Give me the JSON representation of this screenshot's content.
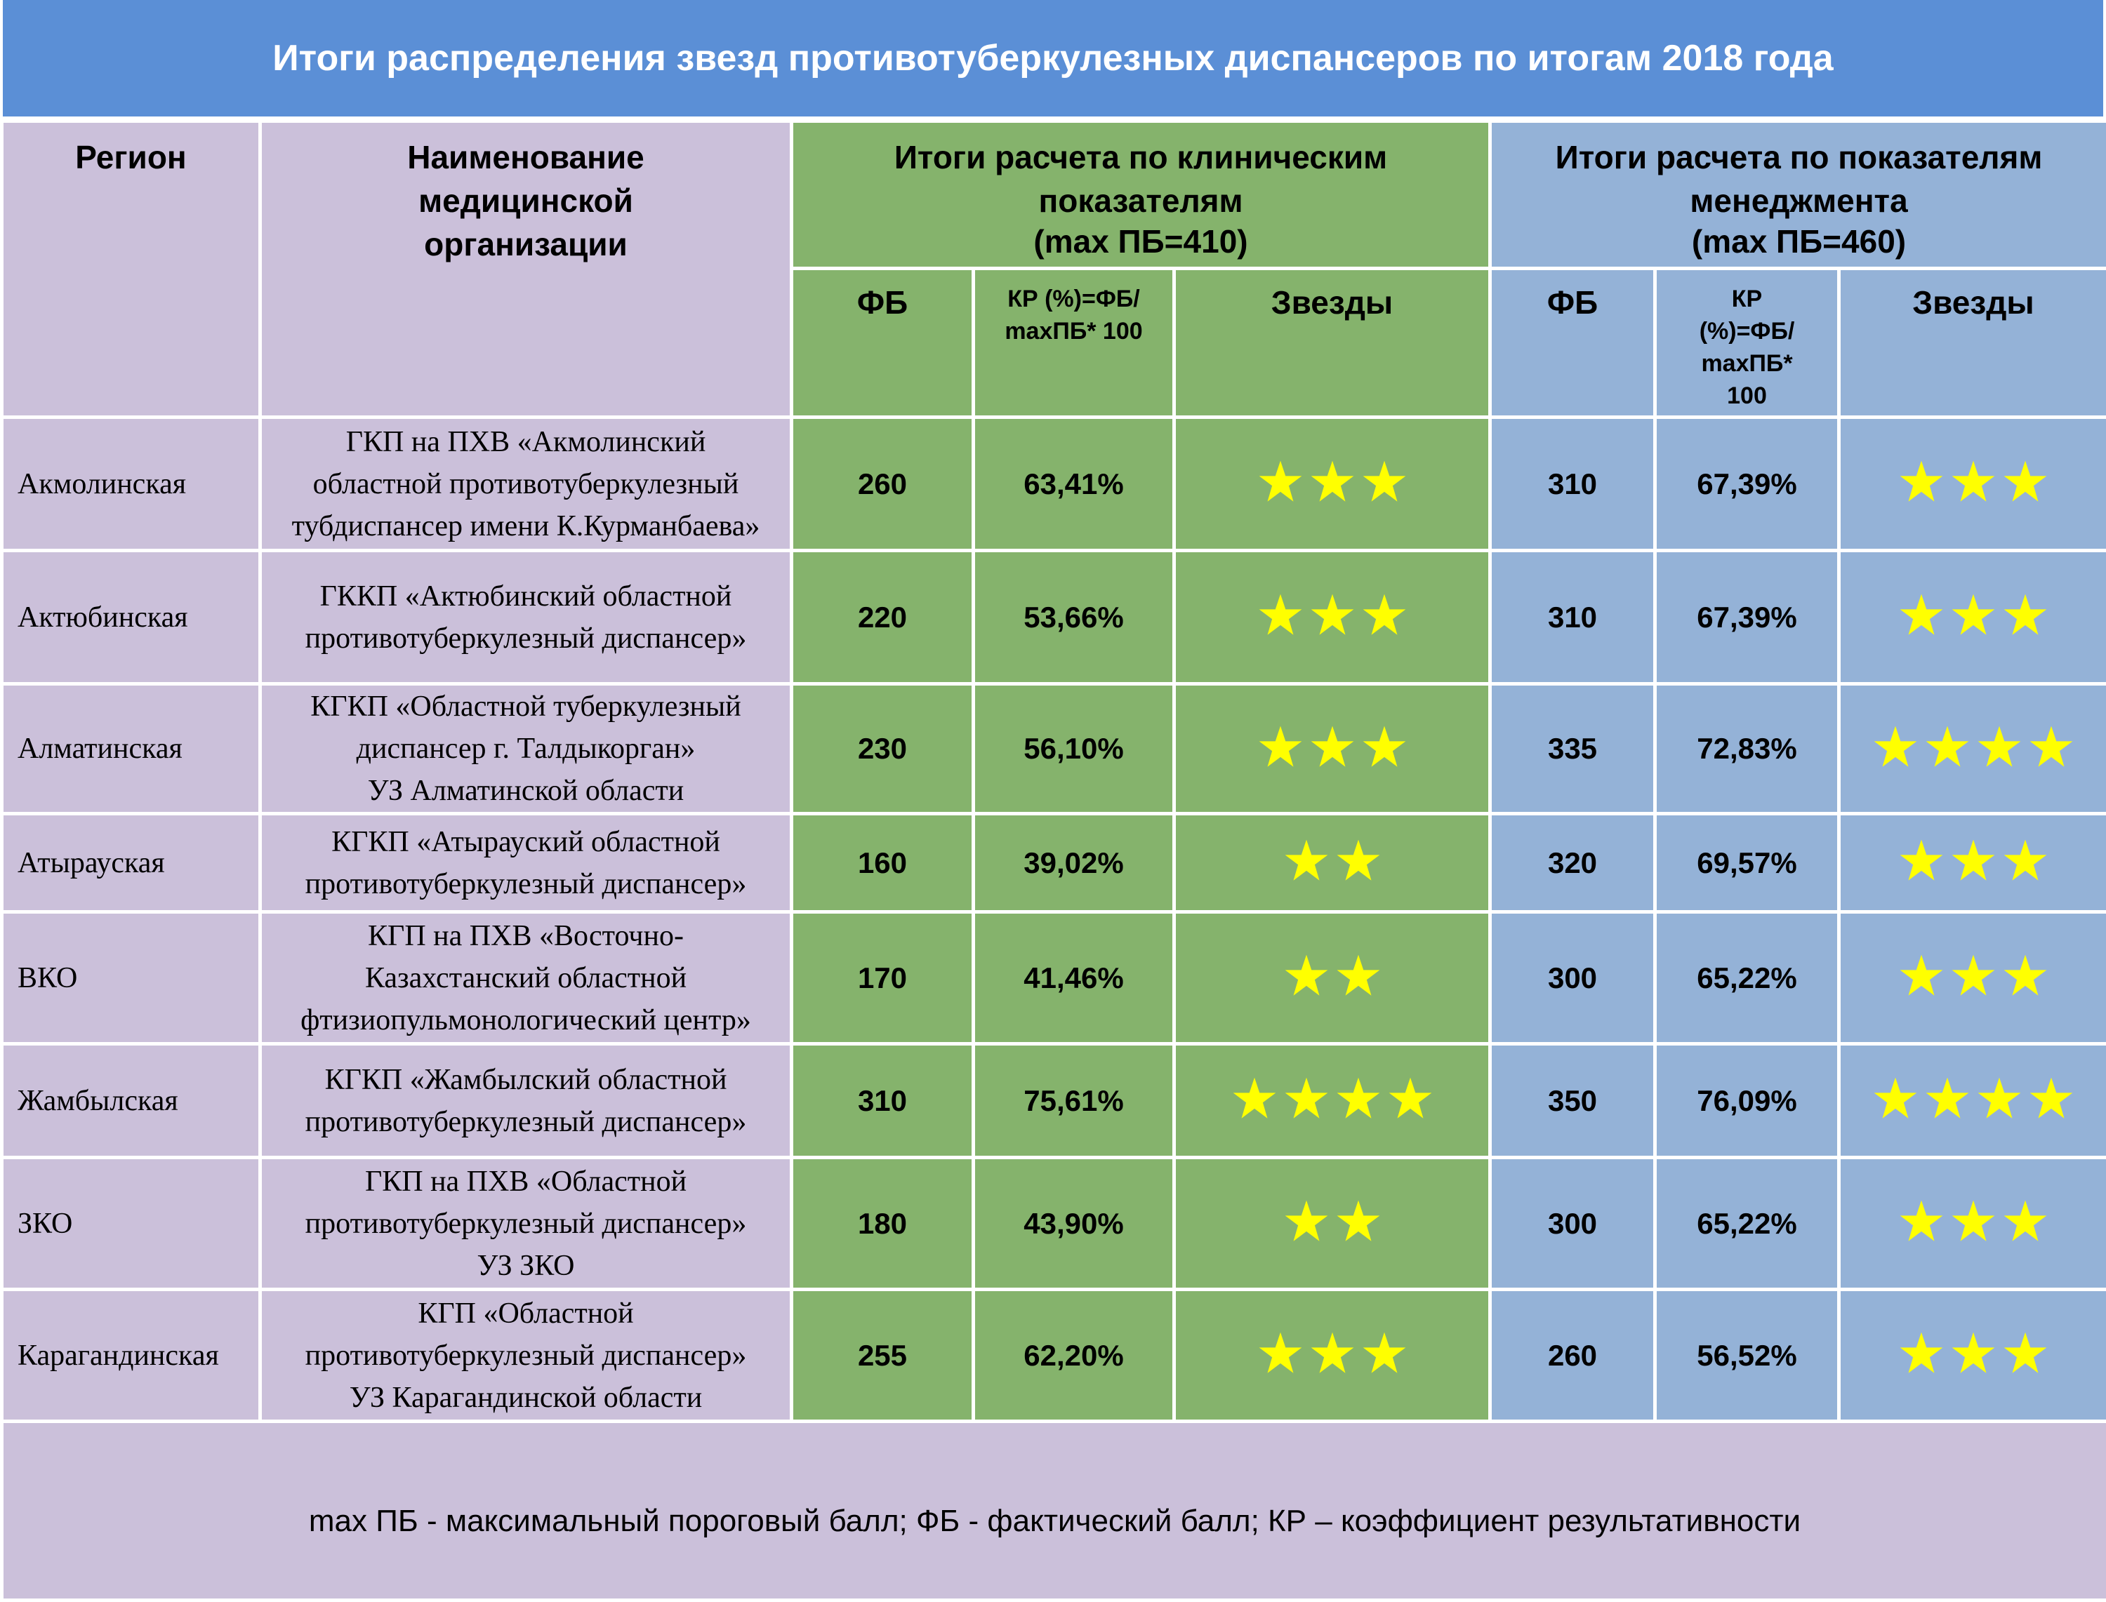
{
  "title": "Итоги распределения звезд противотуберкулезных диспансеров по итогам 2018 года",
  "header": {
    "region": "Регион",
    "org": "Наименование медицинской организации",
    "clinical": {
      "line1": "Итоги расчета по клиническим",
      "line2": "показателям",
      "line3": "(max ПБ=410)"
    },
    "management": {
      "line1": "Итоги расчета по показателям",
      "line2": "менеджмента",
      "line3": "(max ПБ=460)"
    },
    "fb": "ФБ",
    "kr_clin_1": "КР (%)=ФБ/",
    "kr_clin_2": "maxПБ* 100",
    "kr_mgmt_1": "КР",
    "kr_mgmt_2": "(%)=ФБ/",
    "kr_mgmt_3": "maxПБ*",
    "kr_mgmt_4": "100",
    "stars": "Звезды"
  },
  "rows": [
    {
      "region": "Акмолинская",
      "org": [
        "ГКП на ПХВ «Акмолинский",
        "областной противотуберкулезный",
        "тубдиспансер имени К.Курманбаева»"
      ],
      "clin_fb": "260",
      "clin_kr": "63,41%",
      "clin_stars": 3,
      "mgmt_fb": "310",
      "mgmt_kr": "67,39%",
      "mgmt_stars": 3
    },
    {
      "region": "Актюбинская",
      "org": [
        "ГККП «Актюбинский областной",
        "противотуберкулезный диспансер»"
      ],
      "clin_fb": "220",
      "clin_kr": "53,66%",
      "clin_stars": 3,
      "mgmt_fb": "310",
      "mgmt_kr": "67,39%",
      "mgmt_stars": 3
    },
    {
      "region": "Алматинская",
      "org": [
        "КГКП «Областной туберкулезный",
        "диспансер г. Талдыкорган»",
        "УЗ Алматинской области"
      ],
      "clin_fb": "230",
      "clin_kr": "56,10%",
      "clin_stars": 3,
      "mgmt_fb": "335",
      "mgmt_kr": "72,83%",
      "mgmt_stars": 4
    },
    {
      "region": "Атырауская",
      "org": [
        "КГКП «Атырауский областной",
        "противотуберкулезный  диспансер»"
      ],
      "clin_fb": "160",
      "clin_kr": "39,02%",
      "clin_stars": 2,
      "mgmt_fb": "320",
      "mgmt_kr": "69,57%",
      "mgmt_stars": 3
    },
    {
      "region": "ВКО",
      "org": [
        "КГП на ПХВ «Восточно-",
        "Казахстанский областной",
        "фтизиопульмонологический центр»"
      ],
      "clin_fb": "170",
      "clin_kr": "41,46%",
      "clin_stars": 2,
      "mgmt_fb": "300",
      "mgmt_kr": "65,22%",
      "mgmt_stars": 3
    },
    {
      "region": "Жамбылская",
      "org": [
        "КГКП «Жамбылский областной",
        "противотуберкулезный диспансер»"
      ],
      "clin_fb": "310",
      "clin_kr": "75,61%",
      "clin_stars": 4,
      "mgmt_fb": "350",
      "mgmt_kr": "76,09%",
      "mgmt_stars": 4
    },
    {
      "region": "ЗКО",
      "org": [
        "ГКП на ПХВ «Областной",
        "противотуберкулезный диспансер»",
        "УЗ ЗКО"
      ],
      "clin_fb": "180",
      "clin_kr": "43,90%",
      "clin_stars": 2,
      "mgmt_fb": "300",
      "mgmt_kr": "65,22%",
      "mgmt_stars": 3
    },
    {
      "region": "Карагандинская",
      "org": [
        "КГП «Областной",
        "противотуберкулезный диспансер»",
        "УЗ Карагандинской области"
      ],
      "clin_fb": "255",
      "clin_kr": "62,20%",
      "clin_stars": 3,
      "mgmt_fb": "260",
      "mgmt_kr": "56,52%",
      "mgmt_stars": 3
    }
  ],
  "footer": "max ПБ - максимальный пороговый балл; ФБ - фактический балл; КР – коэффициент результативности",
  "colors": {
    "title_bg": "#5b8fd6",
    "lavender": "#cbc0da",
    "green": "#85b36c",
    "blue": "#94b2d7",
    "star": "#ffff00"
  },
  "icons": {
    "rating": "star-icon"
  }
}
